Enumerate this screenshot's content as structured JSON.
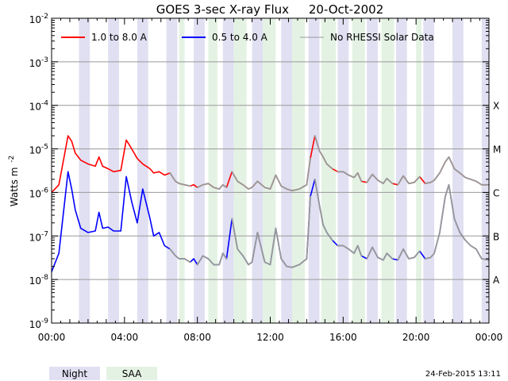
{
  "chart_data": {
    "type": "line",
    "title": "GOES 3-sec X-ray Flux",
    "date": "20-Oct-2002",
    "ylabel": "Watts m",
    "ylabel_exponent": "-2",
    "y_scale": "log",
    "ylim": [
      1e-09,
      0.01
    ],
    "y_ticks": [
      {
        "base": "10",
        "exp": "-2"
      },
      {
        "base": "10",
        "exp": "-3"
      },
      {
        "base": "10",
        "exp": "-4"
      },
      {
        "base": "10",
        "exp": "-5"
      },
      {
        "base": "10",
        "exp": "-6"
      },
      {
        "base": "10",
        "exp": "-7"
      },
      {
        "base": "10",
        "exp": "-8"
      },
      {
        "base": "10",
        "exp": "-9"
      }
    ],
    "xlim": [
      "00:00",
      "24:00"
    ],
    "x_tick_labels": [
      "00:00",
      "04:00",
      "08:00",
      "12:00",
      "16:00",
      "20:00",
      "00:00"
    ],
    "flare_classes": [
      {
        "label": "X",
        "value": 0.0001
      },
      {
        "label": "M",
        "value": 1e-05
      },
      {
        "label": "C",
        "value": 1e-06
      },
      {
        "label": "B",
        "value": 1e-07
      },
      {
        "label": "A",
        "value": 1e-08
      }
    ],
    "grid": "horizontal",
    "legend_position": "top",
    "legend": [
      {
        "label": "1.0 to 8.0 A",
        "color": "#ff0000"
      },
      {
        "label": "0.5 to 4.0 A",
        "color": "#0000ff"
      },
      {
        "label": "No RHESSI Solar Data",
        "color": "#999999"
      }
    ],
    "band_legend": [
      {
        "label": "Night",
        "color": "#e0e0f2"
      },
      {
        "label": "SAA",
        "color": "#e4f2e4"
      }
    ],
    "night_intervals": [
      [
        1.5,
        2.1
      ],
      [
        3.1,
        3.7
      ],
      [
        4.7,
        5.3
      ],
      [
        6.3,
        6.9
      ],
      [
        7.8,
        8.4
      ],
      [
        9.4,
        10.0
      ],
      [
        11.0,
        11.6
      ],
      [
        12.6,
        13.2
      ],
      [
        14.1,
        14.7
      ],
      [
        15.7,
        16.3
      ],
      [
        17.3,
        17.9
      ],
      [
        18.9,
        19.5
      ],
      [
        20.4,
        21.0
      ],
      [
        22.0,
        22.6
      ],
      [
        23.6,
        24.0
      ]
    ],
    "saa_intervals": [
      [
        7.0,
        7.3
      ],
      [
        8.6,
        9.1
      ],
      [
        10.0,
        10.7
      ],
      [
        11.6,
        12.3
      ],
      [
        13.2,
        13.9
      ],
      [
        14.8,
        15.6
      ],
      [
        16.5,
        17.2
      ],
      [
        18.1,
        18.8
      ],
      [
        20.0,
        20.3
      ]
    ],
    "rhessi_gap_intervals": [
      [
        6.55,
        7.6
      ],
      [
        8.15,
        9.6
      ],
      [
        9.8,
        11.2
      ],
      [
        11.4,
        12.8
      ],
      [
        13.0,
        14.3
      ],
      [
        14.5,
        15.3
      ],
      [
        15.7,
        16.9
      ],
      [
        17.3,
        18.6
      ],
      [
        18.9,
        20.3
      ],
      [
        20.6,
        24.0
      ]
    ],
    "series": [
      {
        "name": "1.0 to 8.0 A",
        "color": "#ff0000",
        "x": [
          0.0,
          0.4,
          0.9,
          1.1,
          1.3,
          1.6,
          2.0,
          2.4,
          2.6,
          2.8,
          3.1,
          3.4,
          3.8,
          4.1,
          4.4,
          4.7,
          5.0,
          5.4,
          5.6,
          5.9,
          6.2,
          6.5,
          6.8,
          7.0,
          7.3,
          7.6,
          7.8,
          8.0,
          8.3,
          8.6,
          8.9,
          9.2,
          9.4,
          9.6,
          9.9,
          10.2,
          10.5,
          10.8,
          11.0,
          11.3,
          11.7,
          12.0,
          12.3,
          12.6,
          12.9,
          13.2,
          13.6,
          14.0,
          14.2,
          14.45,
          14.7,
          14.9,
          15.1,
          15.4,
          15.7,
          16.0,
          16.3,
          16.6,
          16.8,
          17.0,
          17.3,
          17.6,
          17.9,
          18.2,
          18.4,
          18.7,
          19.0,
          19.3,
          19.6,
          19.9,
          20.2,
          20.5,
          20.8,
          21.0,
          21.3,
          21.6,
          21.8,
          22.1,
          22.4,
          22.7,
          23.0,
          23.3,
          23.6,
          24.0
        ],
        "y": [
          1e-06,
          1.5e-06,
          2e-05,
          1.5e-05,
          8e-06,
          5.5e-06,
          4.5e-06,
          4e-06,
          6.5e-06,
          4e-06,
          3.5e-06,
          3e-06,
          3.2e-06,
          1.6e-05,
          1e-05,
          6e-06,
          4.5e-06,
          3.5e-06,
          2.8e-06,
          3e-06,
          2.5e-06,
          2.8e-06,
          1.8e-06,
          1.6e-06,
          1.5e-06,
          1.4e-06,
          1.5e-06,
          1.3e-06,
          1.5e-06,
          1.6e-06,
          1.3e-06,
          1.2e-06,
          1.5e-06,
          1.3e-06,
          3e-06,
          1.8e-06,
          1.5e-06,
          1.2e-06,
          1.3e-06,
          1.8e-06,
          1.3e-06,
          1.2e-06,
          2.5e-06,
          1.4e-06,
          1.2e-06,
          1.1e-06,
          1.2e-06,
          1.5e-06,
          6e-06,
          2e-05,
          9e-06,
          6.5e-06,
          4.5e-06,
          3.5e-06,
          3e-06,
          3e-06,
          2.5e-06,
          2.2e-06,
          2.8e-06,
          1.8e-06,
          1.7e-06,
          2.6e-06,
          1.9e-06,
          1.6e-06,
          2.1e-06,
          1.6e-06,
          1.5e-06,
          2.4e-06,
          1.6e-06,
          1.7e-06,
          2.3e-06,
          1.6e-06,
          1.7e-06,
          1.9e-06,
          2.8e-06,
          5e-06,
          6.5e-06,
          3.5e-06,
          2.8e-06,
          2.2e-06,
          2e-06,
          1.8e-06,
          1.5e-06,
          1.5e-06
        ]
      },
      {
        "name": "0.5 to 4.0 A",
        "color": "#0000ff",
        "x": [
          0.0,
          0.4,
          0.9,
          1.1,
          1.3,
          1.6,
          2.0,
          2.4,
          2.6,
          2.8,
          3.1,
          3.4,
          3.8,
          4.1,
          4.4,
          4.7,
          5.0,
          5.4,
          5.6,
          5.9,
          6.2,
          6.5,
          6.8,
          7.0,
          7.3,
          7.6,
          7.8,
          8.0,
          8.3,
          8.6,
          8.9,
          9.2,
          9.4,
          9.6,
          9.9,
          10.2,
          10.5,
          10.8,
          11.0,
          11.3,
          11.7,
          12.0,
          12.3,
          12.6,
          12.9,
          13.2,
          13.6,
          14.0,
          14.2,
          14.45,
          14.7,
          14.9,
          15.1,
          15.4,
          15.7,
          16.0,
          16.3,
          16.6,
          16.8,
          17.0,
          17.3,
          17.6,
          17.9,
          18.2,
          18.4,
          18.7,
          19.0,
          19.3,
          19.6,
          19.9,
          20.2,
          20.5,
          20.8,
          21.0,
          21.3,
          21.6,
          21.8,
          22.1,
          22.4,
          22.7,
          23.0,
          23.3,
          23.6,
          24.0
        ],
        "y": [
          1.5e-08,
          4e-08,
          3e-06,
          1.2e-06,
          4e-07,
          1.5e-07,
          1.2e-07,
          1.3e-07,
          3.5e-07,
          1.5e-07,
          1.6e-07,
          1.3e-07,
          1.3e-07,
          2.3e-06,
          6e-07,
          2e-07,
          1.2e-06,
          2.5e-07,
          1e-07,
          1.2e-07,
          6e-08,
          5e-08,
          3.5e-08,
          3e-08,
          3e-08,
          2.5e-08,
          3e-08,
          2.2e-08,
          3.5e-08,
          3e-08,
          2.2e-08,
          2.2e-08,
          4e-08,
          3e-08,
          2.5e-07,
          5e-08,
          3.5e-08,
          2.2e-08,
          2.5e-08,
          1.2e-07,
          2.5e-08,
          2.2e-08,
          1.5e-07,
          3e-08,
          2e-08,
          1.9e-08,
          2.2e-08,
          3e-08,
          8e-07,
          2e-06,
          5e-07,
          1.8e-07,
          1.2e-07,
          8e-08,
          6e-08,
          6e-08,
          5e-08,
          4e-08,
          6e-08,
          3.5e-08,
          3e-08,
          5.5e-08,
          3.2e-08,
          2.8e-08,
          4e-08,
          3e-08,
          2.8e-08,
          5e-08,
          3e-08,
          3.2e-08,
          4.5e-08,
          3e-08,
          3.2e-08,
          4e-08,
          1.2e-07,
          8e-07,
          1.5e-06,
          2.5e-07,
          1.2e-07,
          8e-08,
          6e-08,
          5e-08,
          3e-08,
          2.8e-08
        ]
      }
    ]
  },
  "footer": {
    "timestamp": "24-Feb-2015 13:11"
  }
}
